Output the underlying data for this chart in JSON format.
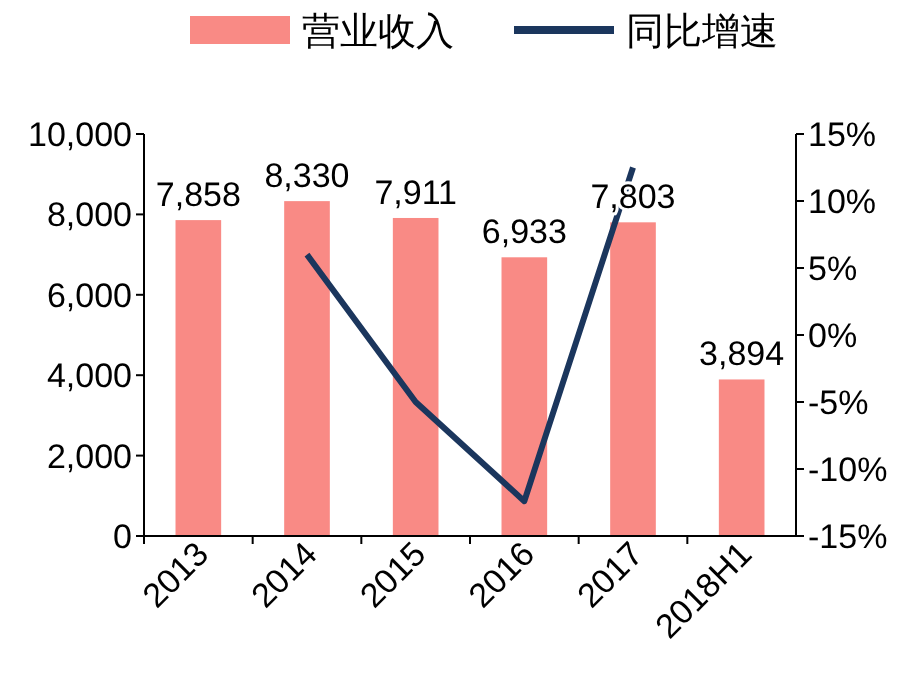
{
  "chart_data": {
    "type": "bar",
    "categories": [
      "2013",
      "2014",
      "2015",
      "2016",
      "2017",
      "2018H1"
    ],
    "series": [
      {
        "name": "营业收入",
        "color": "#f98a85",
        "values": [
          7858,
          8330,
          7911,
          6933,
          7803,
          3894
        ],
        "value_labels": [
          "7,858",
          "8,330",
          "7,911",
          "6,933",
          "7,803",
          "3,894"
        ]
      },
      {
        "name": "同比增速",
        "type": "line",
        "axis": "y2",
        "color": "#1b365d",
        "values": [
          null,
          6.0,
          -5.0,
          -12.4,
          12.5,
          null
        ]
      }
    ],
    "ylim": [
      0,
      10000
    ],
    "yticks": [
      {
        "value": 0,
        "label": "0"
      },
      {
        "value": 2000,
        "label": "2,000"
      },
      {
        "value": 4000,
        "label": "4,000"
      },
      {
        "value": 6000,
        "label": "6,000"
      },
      {
        "value": 8000,
        "label": "8,000"
      },
      {
        "value": 10000,
        "label": "10,000"
      }
    ],
    "y2lim": [
      -15,
      15
    ],
    "y2ticks": [
      {
        "value": -15,
        "label": "-15%"
      },
      {
        "value": -10,
        "label": "-10%"
      },
      {
        "value": -5,
        "label": "-5%"
      },
      {
        "value": 0,
        "label": "0%"
      },
      {
        "value": 5,
        "label": "5%"
      },
      {
        "value": 10,
        "label": "10%"
      },
      {
        "value": 15,
        "label": "15%"
      }
    ],
    "legend": "top",
    "grid": false,
    "marker": "none",
    "line_style": "solid"
  }
}
